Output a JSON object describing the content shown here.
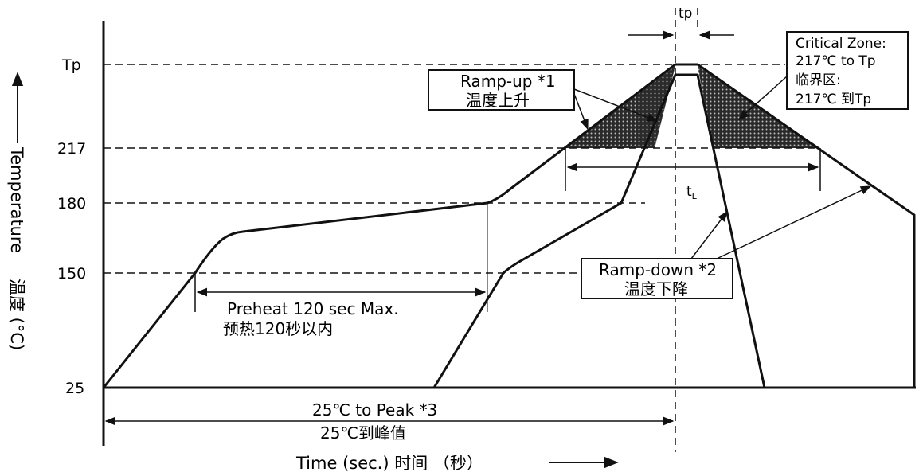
{
  "diagram": {
    "y_ticks": {
      "tp": "Tp",
      "t217": "217",
      "t180": "180",
      "t150": "150",
      "t25": "25"
    },
    "y_axis_label": "Temperature",
    "y_axis_label_cn": "温度 (°C)",
    "x_axis_label": "Time (sec.) 时间 （秒）",
    "tp_label": "tp",
    "tl_label": "t",
    "tl_sub": "L",
    "ramp_up": {
      "line1": "Ramp-up *1",
      "line2": "温度上升"
    },
    "critical_zone": {
      "line1": "Critical Zone:",
      "line2": "217℃ to Tp",
      "line3": "临界区:",
      "line4": "217℃ 到Tp"
    },
    "ramp_down": {
      "line1": "Ramp-down *2",
      "line2": "温度下降"
    },
    "preheat": {
      "line1": "Preheat 120 sec Max.",
      "line2": "预热120秒以内"
    },
    "to_peak": {
      "line1": "25℃ to Peak *3",
      "line2": "25℃到峰值"
    }
  }
}
